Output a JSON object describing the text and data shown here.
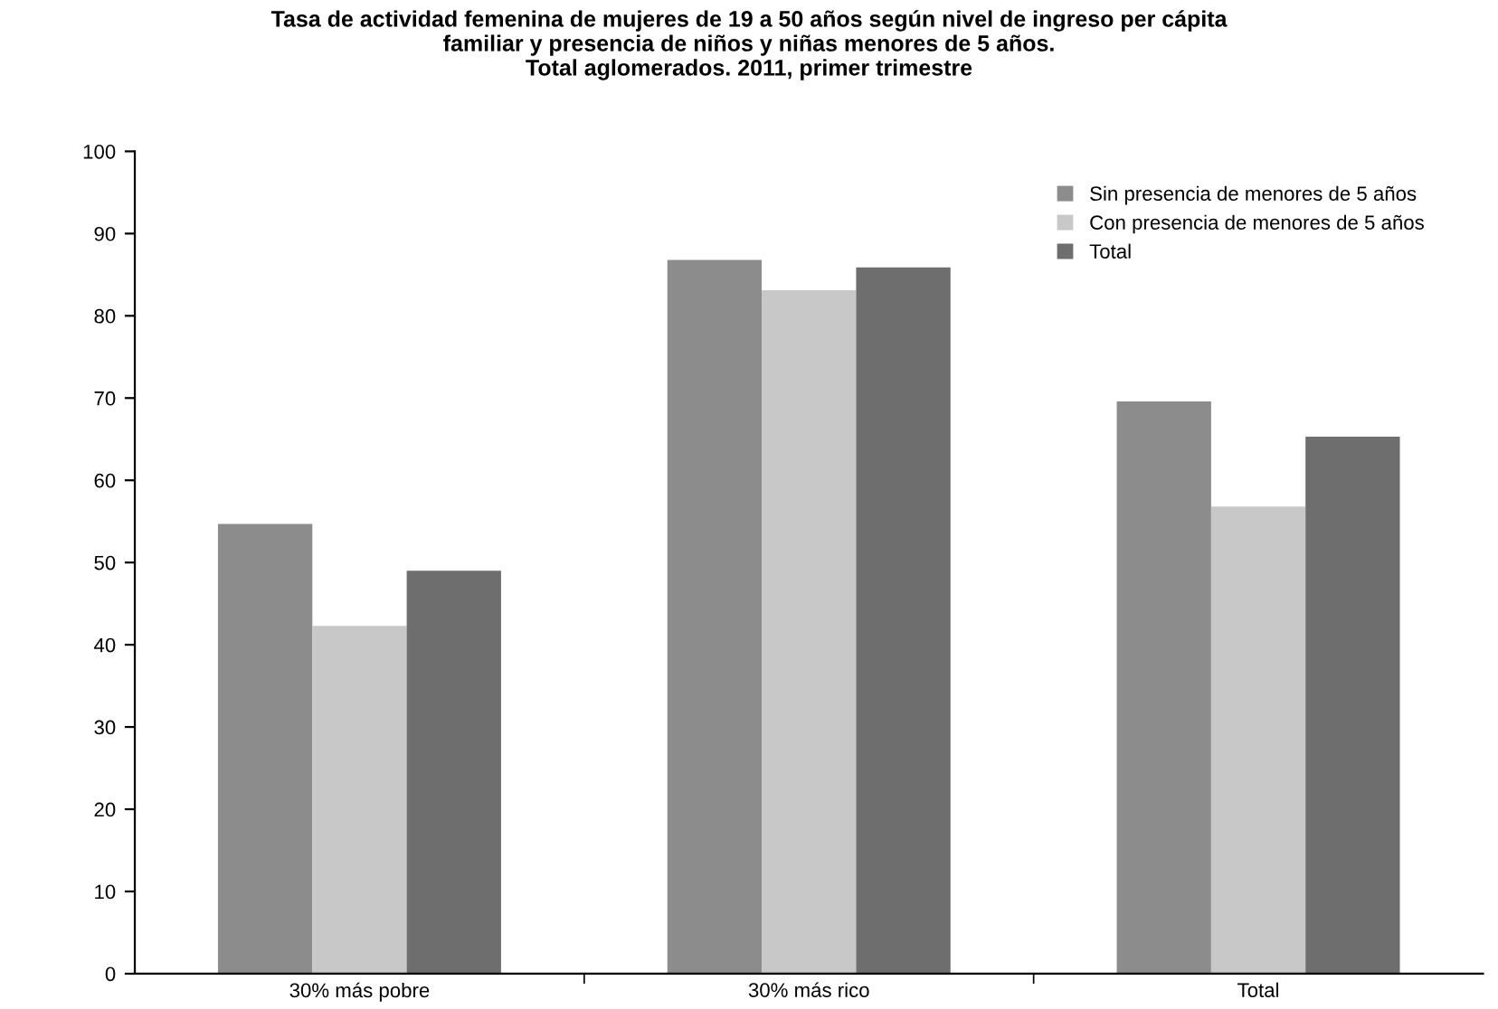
{
  "chart_data": {
    "type": "bar",
    "title": "Tasa de actividad femenina de mujeres de 19 a 50 años según nivel de ingreso per cápita\nfamiliar y presencia de niños y niñas menores de 5 años.\nTotal aglomerados. 2011, primer trimestre",
    "categories": [
      "30% más pobre",
      "30% más rico",
      "Total"
    ],
    "series": [
      {
        "name": "Sin presencia de menores de 5 años",
        "color": "#8c8c8c",
        "values": [
          54.7,
          86.8,
          69.6
        ]
      },
      {
        "name": "Con presencia de menores de 5 años",
        "color": "#c8c8c8",
        "values": [
          42.3,
          83.1,
          56.8
        ]
      },
      {
        "name": "Total",
        "color": "#6e6e6e",
        "values": [
          49.0,
          85.9,
          65.3
        ]
      }
    ],
    "ylim": [
      0,
      100
    ],
    "yticks": [
      0,
      10,
      20,
      30,
      40,
      50,
      60,
      70,
      80,
      90,
      100
    ],
    "grid": false,
    "legend": "top right"
  }
}
